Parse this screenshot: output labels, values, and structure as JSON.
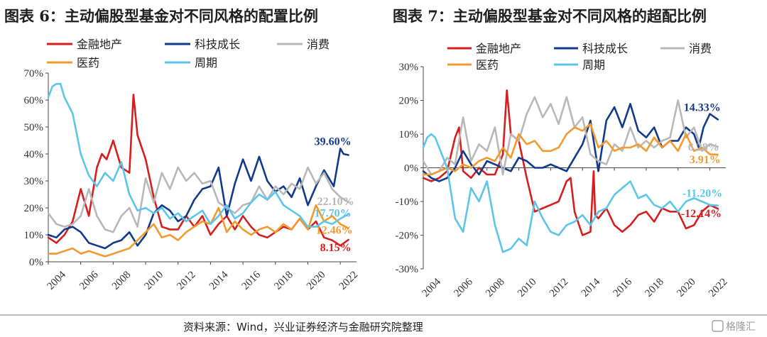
{
  "footer": {
    "source": "资料来源：Wind，兴业证券经济与金融研究院整理",
    "watermark": "格隆汇"
  },
  "colors": {
    "金融地产": "#d71e1e",
    "科技成长": "#123a8c",
    "消费": "#b8b8b8",
    "医药": "#f39a2e",
    "周期": "#5cc5ea"
  },
  "chart_data": [
    {
      "type": "line",
      "title": "图表 6：主动偏股型基金对不同风格的配置比例",
      "ylim": [
        0,
        70
      ],
      "yticks": [
        0,
        10,
        20,
        30,
        40,
        50,
        60,
        70
      ],
      "ytick_labels": [
        "0%",
        "10%",
        "20%",
        "30%",
        "40%",
        "50%",
        "60%",
        "70%"
      ],
      "xlim": [
        2004,
        2023
      ],
      "xticks": [
        2004,
        2006,
        2008,
        2010,
        2012,
        2014,
        2016,
        2018,
        2020,
        2022
      ],
      "xtick_labels": [
        "2004",
        "2006",
        "2008",
        "2010",
        "2012",
        "2014",
        "2016",
        "2018",
        "2020",
        "2022"
      ],
      "legend": [
        "金融地产",
        "科技成长",
        "消费",
        "医药",
        "周期"
      ],
      "series": [
        {
          "name": "金融地产",
          "x": [
            2004.0,
            2004.5,
            2005.0,
            2005.5,
            2006.0,
            2006.5,
            2007.0,
            2007.3,
            2007.6,
            2008.0,
            2008.5,
            2009.0,
            2009.25,
            2009.5,
            2010.0,
            2010.5,
            2011.0,
            2011.5,
            2012.0,
            2012.5,
            2013.0,
            2013.5,
            2014.0,
            2014.5,
            2015.0,
            2015.5,
            2016.0,
            2016.5,
            2017.0,
            2017.5,
            2018.0,
            2018.5,
            2019.0,
            2019.5,
            2020.0,
            2020.5,
            2021.0,
            2021.5,
            2022.0,
            2022.5
          ],
          "y": [
            9,
            7,
            10,
            15,
            27,
            17,
            35,
            40,
            38,
            45,
            35,
            33,
            62,
            47,
            38,
            24,
            13,
            12,
            12,
            17,
            13,
            17,
            10,
            14,
            17,
            12,
            17,
            13,
            10,
            9,
            11,
            13,
            12,
            16,
            12,
            15,
            9,
            8,
            6,
            8.15
          ]
        },
        {
          "name": "科技成长",
          "x": [
            2004.0,
            2004.5,
            2005.0,
            2005.5,
            2006.0,
            2006.5,
            2007.0,
            2007.5,
            2008.0,
            2008.5,
            2009.0,
            2009.5,
            2010.0,
            2010.5,
            2011.0,
            2011.5,
            2012.0,
            2012.5,
            2013.0,
            2013.5,
            2014.0,
            2014.5,
            2015.0,
            2015.5,
            2016.0,
            2016.5,
            2017.0,
            2017.5,
            2018.0,
            2018.5,
            2019.0,
            2019.5,
            2020.0,
            2020.5,
            2021.0,
            2021.3,
            2021.6,
            2022.0,
            2022.2,
            2022.5
          ],
          "y": [
            10,
            9,
            12,
            13,
            11,
            7,
            6,
            5,
            7,
            8,
            11,
            6,
            10,
            18,
            21,
            19,
            15,
            17,
            23,
            27,
            28,
            35,
            17,
            29,
            38,
            30,
            39,
            30,
            26,
            28,
            24,
            31,
            21,
            28,
            34,
            31,
            28,
            42,
            40,
            39.6
          ]
        },
        {
          "name": "消费",
          "x": [
            2004.0,
            2004.5,
            2005.0,
            2005.5,
            2006.0,
            2006.5,
            2007.0,
            2007.5,
            2008.0,
            2008.5,
            2009.0,
            2009.5,
            2010.0,
            2010.5,
            2011.0,
            2011.5,
            2012.0,
            2012.5,
            2013.0,
            2013.5,
            2014.0,
            2014.5,
            2015.0,
            2015.5,
            2016.0,
            2016.5,
            2017.0,
            2017.5,
            2018.0,
            2018.5,
            2019.0,
            2019.5,
            2020.0,
            2020.5,
            2021.0,
            2021.5,
            2022.0,
            2022.5
          ],
          "y": [
            18,
            14,
            13,
            14,
            17,
            27,
            17,
            12,
            11,
            17,
            20,
            13,
            31,
            22,
            33,
            27,
            35,
            30,
            33,
            29,
            30,
            22,
            20,
            18,
            21,
            22,
            28,
            23,
            28,
            25,
            29,
            27,
            35,
            29,
            33,
            27,
            24,
            22.1
          ]
        },
        {
          "name": "医药",
          "x": [
            2004.0,
            2004.5,
            2005.0,
            2005.5,
            2006.0,
            2006.5,
            2007.0,
            2007.5,
            2008.0,
            2008.5,
            2009.0,
            2009.5,
            2010.0,
            2010.5,
            2011.0,
            2011.5,
            2012.0,
            2012.5,
            2013.0,
            2013.5,
            2014.0,
            2014.5,
            2015.0,
            2015.5,
            2016.0,
            2016.5,
            2017.0,
            2017.5,
            2018.0,
            2018.5,
            2019.0,
            2019.5,
            2020.0,
            2020.5,
            2021.0,
            2021.5,
            2022.0,
            2022.5
          ],
          "y": [
            3,
            3,
            4,
            5,
            3,
            4,
            3,
            2,
            3,
            4,
            5,
            8,
            11,
            14,
            9,
            10,
            8,
            11,
            13,
            15,
            14,
            20,
            11,
            15,
            12,
            10,
            12,
            13,
            11,
            14,
            12,
            16,
            12,
            21,
            15,
            17,
            14,
            12.46
          ]
        },
        {
          "name": "周期",
          "x": [
            2004.0,
            2004.25,
            2004.5,
            2004.75,
            2005.0,
            2005.5,
            2006.0,
            2006.5,
            2007.0,
            2007.5,
            2008.0,
            2008.5,
            2009.0,
            2009.5,
            2010.0,
            2010.5,
            2011.0,
            2011.5,
            2012.0,
            2012.5,
            2013.0,
            2013.5,
            2014.0,
            2014.5,
            2015.0,
            2015.5,
            2016.0,
            2016.5,
            2017.0,
            2017.5,
            2018.0,
            2018.5,
            2019.0,
            2019.5,
            2020.0,
            2020.5,
            2021.0,
            2021.5,
            2022.0,
            2022.5
          ],
          "y": [
            61,
            65,
            66,
            66,
            61,
            55,
            40,
            32,
            28,
            33,
            30,
            37,
            25,
            19,
            20,
            18,
            20,
            16,
            18,
            15,
            17,
            19,
            14,
            17,
            21,
            16,
            18,
            22,
            25,
            23,
            26,
            21,
            19,
            17,
            13,
            13,
            15,
            14,
            16,
            17.7
          ]
        }
      ],
      "end_labels": [
        {
          "series": "科技成长",
          "text": "39.60%"
        },
        {
          "series": "消费",
          "text": "22.10%"
        },
        {
          "series": "周期",
          "text": "17.70%"
        },
        {
          "series": "医药",
          "text": "12.46%"
        },
        {
          "series": "金融地产",
          "text": "8.15%"
        }
      ]
    },
    {
      "type": "line",
      "title": "图表 7：主动偏股型基金对不同风格的超配比例",
      "ylim": [
        -30,
        30
      ],
      "yticks": [
        -30,
        -20,
        -10,
        0,
        10,
        20,
        30
      ],
      "ytick_labels": [
        "-30%",
        "-20%",
        "-10%",
        "0%",
        "10%",
        "20%",
        "30%"
      ],
      "xlim": [
        2004,
        2023
      ],
      "xticks": [
        2004,
        2006,
        2008,
        2010,
        2012,
        2014,
        2016,
        2018,
        2020,
        2022
      ],
      "xtick_labels": [
        "2004",
        "2006",
        "2008",
        "2010",
        "2012",
        "2014",
        "2016",
        "2018",
        "2020",
        "2022"
      ],
      "legend": [
        "金融地产",
        "科技成长",
        "消费",
        "医药",
        "周期"
      ],
      "series": [
        {
          "name": "金融地产",
          "x": [
            2004.0,
            2004.5,
            2005.0,
            2005.5,
            2006.0,
            2006.25,
            2006.5,
            2007.0,
            2007.5,
            2008.0,
            2008.5,
            2009.0,
            2009.25,
            2009.5,
            2010.0,
            2010.5,
            2011.0,
            2011.5,
            2012.0,
            2012.5,
            2013.0,
            2013.25,
            2013.5,
            2014.0,
            2014.5,
            2014.7,
            2014.8,
            2015.0,
            2015.5,
            2016.0,
            2016.5,
            2017.0,
            2017.5,
            2018.0,
            2018.5,
            2019.0,
            2019.5,
            2020.0,
            2020.5,
            2021.0,
            2021.5,
            2022.0,
            2022.5
          ],
          "y": [
            -3,
            -4,
            -3,
            -1,
            9,
            12,
            -1,
            -3,
            0,
            -2,
            -2,
            4,
            23,
            10,
            8,
            -3,
            -13,
            -12,
            -11,
            -10,
            -4,
            -3,
            -13,
            -20,
            -19,
            -1,
            -14,
            -15,
            -12,
            -17,
            -19,
            -17,
            -14,
            -13,
            -16,
            -12,
            -13,
            -13,
            -18,
            -17,
            -13,
            -11,
            -12.14
          ]
        },
        {
          "name": "科技成长",
          "x": [
            2004.0,
            2004.5,
            2005.0,
            2005.5,
            2006.0,
            2006.5,
            2007.0,
            2007.5,
            2008.0,
            2008.5,
            2009.0,
            2009.5,
            2010.0,
            2010.5,
            2011.0,
            2011.5,
            2012.0,
            2012.5,
            2013.0,
            2013.5,
            2014.0,
            2014.5,
            2015.0,
            2015.5,
            2016.0,
            2016.5,
            2017.0,
            2017.5,
            2018.0,
            2018.5,
            2019.0,
            2019.5,
            2020.0,
            2020.5,
            2021.0,
            2021.3,
            2021.6,
            2022.0,
            2022.5
          ],
          "y": [
            -1,
            -3,
            -4,
            -3,
            0,
            5,
            1,
            -2,
            2,
            1,
            0,
            -1,
            3,
            2,
            0,
            0,
            1,
            0,
            -1,
            3,
            7,
            14,
            -1,
            14,
            18,
            12,
            19,
            11,
            9,
            12,
            6,
            8,
            8,
            12,
            10,
            6,
            12,
            16,
            14.33
          ]
        },
        {
          "name": "消费",
          "x": [
            2004.0,
            2004.5,
            2005.0,
            2005.5,
            2006.0,
            2006.5,
            2007.0,
            2007.5,
            2008.0,
            2008.5,
            2009.0,
            2009.5,
            2010.0,
            2010.5,
            2011.0,
            2011.5,
            2012.0,
            2012.5,
            2013.0,
            2013.5,
            2014.0,
            2014.5,
            2015.0,
            2015.5,
            2016.0,
            2016.5,
            2017.0,
            2017.5,
            2018.0,
            2018.5,
            2019.0,
            2019.5,
            2020.0,
            2020.5,
            2021.0,
            2021.5,
            2022.0,
            2022.5
          ],
          "y": [
            2,
            -2,
            -1,
            3,
            1,
            15,
            2,
            7,
            5,
            12,
            -2,
            10,
            8,
            16,
            21,
            15,
            19,
            13,
            21,
            12,
            15,
            4,
            2,
            1,
            7,
            5,
            12,
            6,
            8,
            6,
            8,
            9,
            20,
            9,
            12,
            5,
            7,
            6.28
          ]
        },
        {
          "name": "医药",
          "x": [
            2004.0,
            2004.5,
            2005.0,
            2005.5,
            2006.0,
            2006.5,
            2007.0,
            2007.5,
            2008.0,
            2008.5,
            2009.0,
            2009.5,
            2010.0,
            2010.5,
            2011.0,
            2011.5,
            2012.0,
            2012.5,
            2013.0,
            2013.5,
            2014.0,
            2014.5,
            2015.0,
            2015.5,
            2016.0,
            2016.5,
            2017.0,
            2017.5,
            2018.0,
            2018.5,
            2019.0,
            2019.5,
            2020.0,
            2020.5,
            2021.0,
            2021.5,
            2022.0,
            2022.5
          ],
          "y": [
            -2,
            -2,
            -1,
            0,
            -1,
            1,
            0,
            2,
            3,
            2,
            6,
            3,
            10,
            7,
            8,
            5,
            5,
            6,
            10,
            12,
            11,
            13,
            6,
            8,
            5,
            6,
            6,
            7,
            5,
            9,
            6,
            8,
            5,
            10,
            5,
            6,
            4,
            3.91
          ]
        },
        {
          "name": "周期",
          "x": [
            2004.0,
            2004.25,
            2004.5,
            2004.75,
            2005.0,
            2005.5,
            2006.0,
            2006.5,
            2007.0,
            2007.5,
            2008.0,
            2008.5,
            2009.0,
            2009.5,
            2010.0,
            2010.5,
            2011.0,
            2011.5,
            2012.0,
            2012.5,
            2013.0,
            2013.5,
            2014.0,
            2014.5,
            2015.0,
            2015.5,
            2016.0,
            2016.5,
            2017.0,
            2017.5,
            2018.0,
            2018.5,
            2019.0,
            2019.5,
            2020.0,
            2020.5,
            2021.0,
            2021.5,
            2022.0,
            2022.5
          ],
          "y": [
            6,
            9,
            10,
            9,
            6,
            0,
            -15,
            -19,
            -6,
            -10,
            -4,
            -17,
            -25,
            -24,
            -21,
            -23,
            -10,
            -15,
            -19,
            -20,
            -17,
            -16,
            -14,
            -17,
            -13,
            -12,
            -8,
            -6,
            -4,
            -9,
            -8,
            -11,
            -12,
            -10,
            -13,
            -10,
            -9,
            -10,
            -11,
            -11.2
          ]
        }
      ],
      "end_labels": [
        {
          "series": "科技成长",
          "text": "14.33%"
        },
        {
          "series": "消费",
          "text": "6.28%"
        },
        {
          "series": "医药",
          "text": "3.91%"
        },
        {
          "series": "周期",
          "text": "-11.20%"
        },
        {
          "series": "金融地产",
          "text": "-12.14%"
        }
      ]
    }
  ]
}
